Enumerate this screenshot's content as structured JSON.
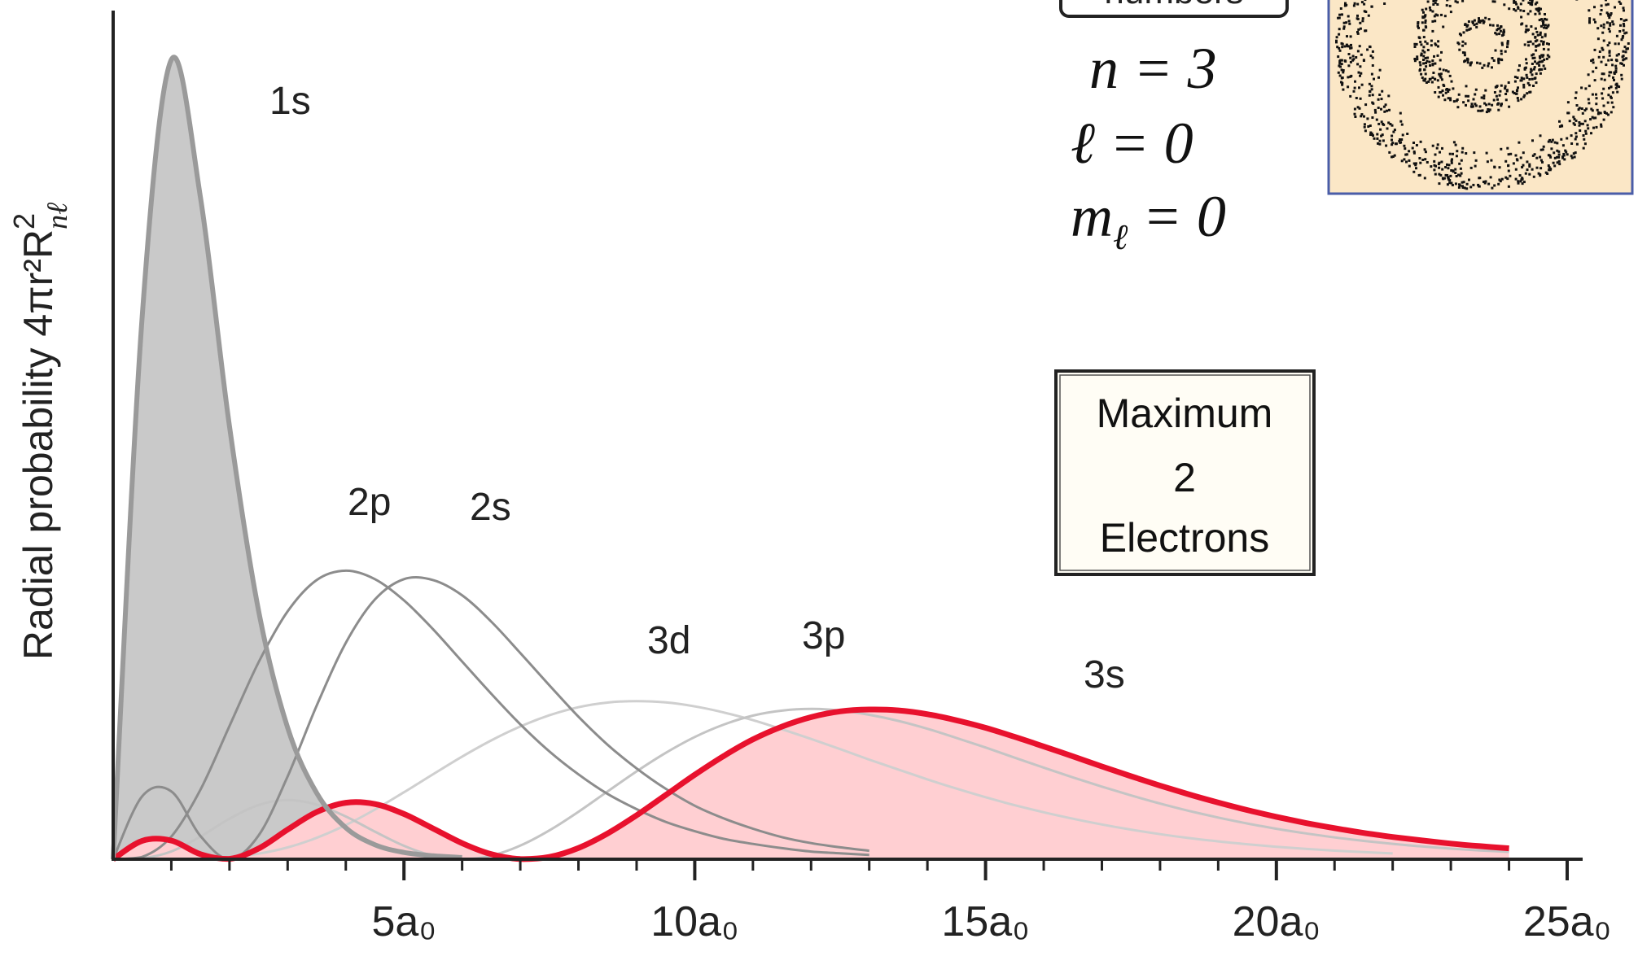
{
  "chart_data": {
    "type": "line",
    "ylabel": "Radial probability 4πr²R",
    "ylabel_sup": "2",
    "ylabel_sub": "nℓ",
    "x": [
      0,
      0.5,
      1,
      1.5,
      2,
      2.5,
      3,
      3.5,
      4,
      4.5,
      5,
      5.5,
      6,
      6.5,
      7,
      7.5,
      8,
      8.5,
      9,
      9.5,
      10,
      10.5,
      11,
      11.5,
      12,
      12.5,
      13,
      13.5,
      14,
      14.5,
      15,
      15.5,
      16,
      16.5,
      17,
      17.5,
      18,
      18.5,
      19,
      19.5,
      20,
      20.5,
      21,
      21.5,
      22,
      22.5,
      23,
      23.5,
      24
    ],
    "xlim": [
      0,
      25
    ],
    "xticks": [
      {
        "value": 5,
        "label": "5a₀"
      },
      {
        "value": 10,
        "label": "10a₀"
      },
      {
        "value": 15,
        "label": "15a₀"
      },
      {
        "value": 20,
        "label": "20a₀"
      },
      {
        "value": 25,
        "label": "25a₀"
      }
    ],
    "x_minor_ticks": [
      1,
      2,
      3,
      4,
      6,
      7,
      8,
      9,
      11,
      12,
      13,
      14,
      16,
      17,
      18,
      19,
      21,
      22,
      23,
      24
    ],
    "ylim": [
      0,
      100
    ],
    "series": [
      {
        "name": "1s",
        "color": "#9a9a9a",
        "fill": "#c9c9c9",
        "values": [
          0,
          64.0,
          94.2,
          78.0,
          51.0,
          29.3,
          15.5,
          7.8,
          3.7,
          1.7,
          0.8,
          0.4,
          0.2,
          null,
          null,
          null,
          null,
          null,
          null,
          null,
          null,
          null,
          null,
          null,
          null,
          null,
          null,
          null,
          null,
          null,
          null,
          null,
          null,
          null,
          null,
          null,
          null,
          null,
          null,
          null,
          null,
          null,
          null,
          null,
          null,
          null,
          null,
          null,
          null
        ]
      },
      {
        "name": "2p",
        "color": "#8c8c8c",
        "values": [
          0,
          0.27,
          2.67,
          8.19,
          15.7,
          23.2,
          29.2,
          32.9,
          34.0,
          33.0,
          30.5,
          27.1,
          23.3,
          19.5,
          15.9,
          12.7,
          10.0,
          7.7,
          5.9,
          4.4,
          3.3,
          2.4,
          1.8,
          1.3,
          0.9,
          0.7,
          0.5,
          null,
          null,
          null,
          null,
          null,
          null,
          null,
          null,
          null,
          null,
          null,
          null,
          null,
          null,
          null,
          null,
          null,
          null,
          null,
          null,
          null,
          null
        ]
      },
      {
        "name": "2s",
        "color": "#8c8c8c",
        "values": [
          0,
          7.42,
          8.0,
          2.73,
          0,
          2.79,
          9.75,
          18.1,
          25.5,
          30.6,
          33.0,
          32.9,
          31.1,
          28.0,
          24.3,
          20.5,
          16.8,
          13.5,
          10.7,
          8.3,
          6.3,
          4.8,
          3.6,
          2.6,
          1.9,
          1.4,
          1.0,
          null,
          null,
          null,
          null,
          null,
          null,
          null,
          null,
          null,
          null,
          null,
          null,
          null,
          null,
          null,
          null,
          null,
          null,
          null,
          null,
          null,
          null
        ]
      },
      {
        "name": "3d",
        "color": "#cfcfcf",
        "values": [
          0,
          0,
          0.01,
          0.06,
          0.24,
          0.65,
          1.39,
          2.52,
          4.03,
          5.85,
          7.89,
          10.01,
          12.09,
          14.0,
          15.64,
          16.96,
          17.91,
          18.46,
          18.63,
          18.48,
          18.01,
          17.29,
          16.39,
          15.31,
          14.17,
          12.97,
          11.74,
          10.57,
          9.41,
          8.32,
          7.31,
          6.37,
          5.53,
          4.77,
          4.09,
          3.49,
          2.95,
          2.49,
          2.1,
          1.76,
          1.47,
          1.22,
          1.01,
          0.83,
          0.68,
          null,
          null,
          null,
          null
        ]
      },
      {
        "name": "3p",
        "color": "#c4c4c4",
        "values": [
          0,
          0.1,
          0.91,
          2.67,
          4.77,
          6.39,
          6.97,
          6.43,
          5.03,
          3.25,
          1.58,
          0.41,
          0,
          0.41,
          1.6,
          3.39,
          5.59,
          7.98,
          10.35,
          12.53,
          14.4,
          15.87,
          16.92,
          17.51,
          17.71,
          17.53,
          17.02,
          16.3,
          15.37,
          14.29,
          13.16,
          11.97,
          10.8,
          9.65,
          8.55,
          7.52,
          6.56,
          5.69,
          4.91,
          4.21,
          3.59,
          3.05,
          2.57,
          2.16,
          1.81,
          1.51,
          1.25,
          1.04,
          0.86
        ]
      },
      {
        "name": "3s",
        "color": "#e8112d",
        "fill": "#ffcfd2",
        "values": [
          0,
          2.17,
          2.2,
          0.59,
          0.04,
          1.26,
          3.49,
          5.56,
          6.65,
          6.5,
          5.33,
          3.62,
          1.89,
          0.59,
          0.02,
          0.27,
          1.32,
          3.03,
          5.18,
          7.56,
          9.95,
          12.17,
          14.11,
          15.63,
          16.74,
          17.42,
          17.64,
          17.54,
          17.09,
          16.37,
          15.48,
          14.42,
          13.29,
          12.12,
          10.93,
          9.78,
          8.67,
          7.63,
          6.67,
          5.79,
          5.0,
          4.28,
          3.66,
          3.1,
          2.62,
          2.21,
          1.84,
          1.54,
          1.28
        ]
      }
    ],
    "header_box": "numbers",
    "quantum_numbers": [
      {
        "text": "n = 3"
      },
      {
        "text": "ℓ = 0"
      },
      {
        "text": "m",
        "sub": "ℓ",
        "rest": " = 0"
      }
    ],
    "box_text": [
      "Maximum",
      "2",
      "Electrons"
    ]
  }
}
